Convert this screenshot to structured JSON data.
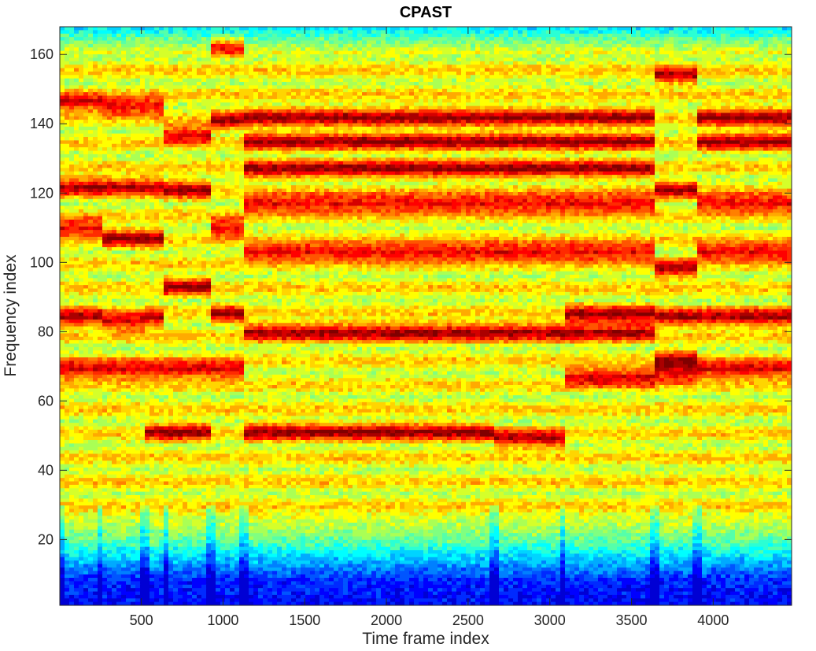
{
  "chart_data": {
    "type": "heatmap",
    "title": "CPAST",
    "xlabel": "Time frame index",
    "ylabel": "Frequency index",
    "xlim": [
      1,
      4480
    ],
    "ylim": [
      1,
      168
    ],
    "xticks": [
      500,
      1000,
      1500,
      2000,
      2500,
      3000,
      3500,
      4000
    ],
    "yticks": [
      20,
      40,
      60,
      80,
      100,
      120,
      140,
      160
    ],
    "colormap": "jet",
    "grid": false,
    "segments": [
      {
        "x_start": 1,
        "x_end": 250,
        "bands": [
          69,
          84,
          110,
          122,
          146
        ]
      },
      {
        "x_start": 250,
        "x_end": 520,
        "bands": [
          69,
          83,
          107,
          122,
          145
        ]
      },
      {
        "x_start": 520,
        "x_end": 650,
        "bands": [
          51,
          69,
          84,
          107,
          122,
          145
        ]
      },
      {
        "x_start": 650,
        "x_end": 920,
        "bands": [
          51,
          69,
          93,
          121,
          137
        ]
      },
      {
        "x_start": 920,
        "x_end": 1130,
        "bands": [
          69,
          85,
          110,
          141,
          162
        ]
      },
      {
        "x_start": 1130,
        "x_end": 2650,
        "bands": [
          51,
          80,
          103,
          117,
          127,
          135,
          142
        ]
      },
      {
        "x_start": 2650,
        "x_end": 3080,
        "bands": [
          49,
          80,
          103,
          117,
          127,
          135,
          142
        ]
      },
      {
        "x_start": 3080,
        "x_end": 3650,
        "bands": [
          67,
          80,
          85,
          103,
          117,
          127,
          135,
          142
        ]
      },
      {
        "x_start": 3650,
        "x_end": 3900,
        "bands": [
          68,
          72,
          84,
          98,
          121,
          154
        ]
      },
      {
        "x_start": 3900,
        "x_end": 4480,
        "bands": [
          69,
          84,
          103,
          117,
          135,
          142
        ]
      }
    ]
  }
}
